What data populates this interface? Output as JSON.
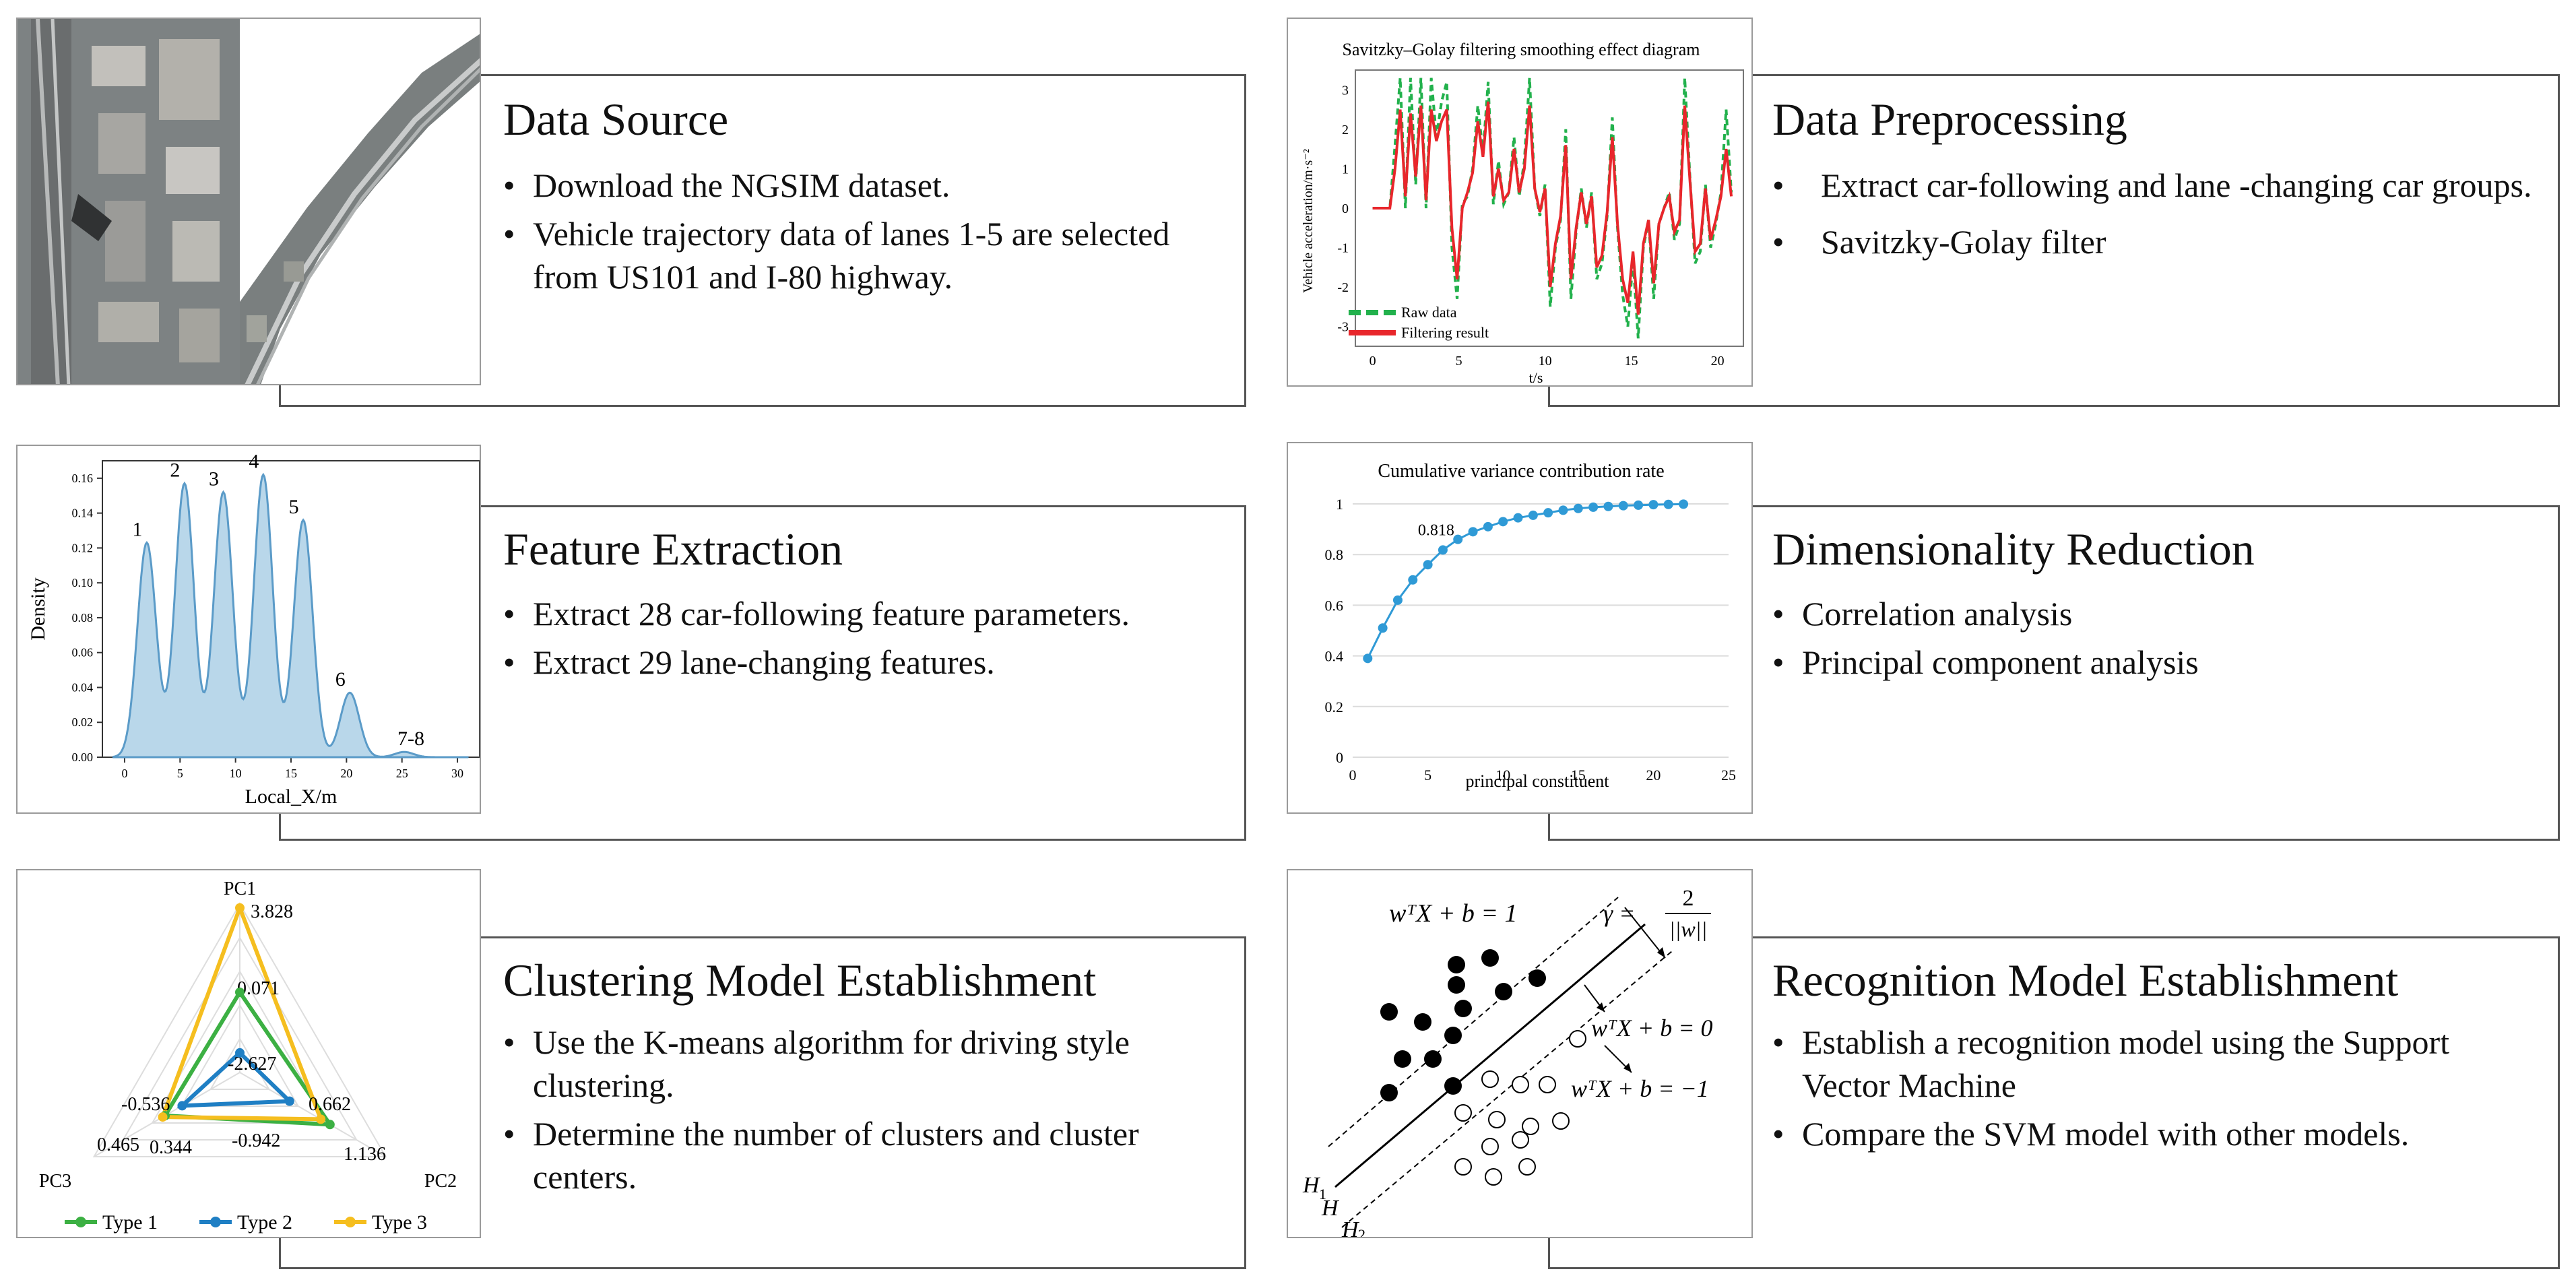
{
  "panels": {
    "data_source": {
      "title": "Data Source",
      "bullets": [
        "Download the NGSIM dataset.",
        "Vehicle trajectory data of lanes 1-5 are selected from US101 and I-80 highway."
      ]
    },
    "data_preprocessing": {
      "title": "Data Preprocessing",
      "bullets": [
        "Extract car-following and lane -changing car groups.",
        "Savitzky-Golay filter"
      ]
    },
    "feature_extraction": {
      "title": "Feature Extraction",
      "bullets": [
        "Extract 28 car-following feature parameters.",
        "Extract 29 lane-changing features."
      ]
    },
    "dimensionality_reduction": {
      "title": "Dimensionality Reduction",
      "bullets": [
        "Correlation analysis",
        "Principal component analysis"
      ]
    },
    "clustering": {
      "title": "Clustering Model Establishment",
      "bullets": [
        "Use the K-means algorithm for driving style clustering.",
        "Determine the number of clusters and cluster centers."
      ]
    },
    "recognition": {
      "title": "Recognition Model Establishment",
      "bullets": [
        "Establish a recognition model using the Support Vector Machine",
        "Compare the SVM model with other models."
      ]
    }
  },
  "colors": {
    "raw": "#22b14c",
    "filtered": "#e8262b",
    "density_fill": "#b9d7ea",
    "density_line": "#5b9bc8",
    "cumvar": "#2f9ad6",
    "type1": "#3cb043",
    "type2": "#1f7fc4",
    "type3": "#f5be1f"
  },
  "chart_data": [
    {
      "id": "sg_filter",
      "type": "line",
      "title": "Savitzky–Golay filtering smoothing effect diagram",
      "xlabel": "t/s",
      "ylabel": "Vehicle acceleration/m·s⁻²",
      "xlim": [
        -1,
        21.5
      ],
      "ylim": [
        -3.5,
        3.5
      ],
      "xticks": [
        "0",
        "5",
        "10",
        "15",
        "20"
      ],
      "yticks": [
        "3",
        "2",
        "1",
        "0",
        "-1",
        "-2",
        "-3"
      ],
      "legend": [
        "Raw data",
        "Filtering result"
      ],
      "legend_position": "bottom-left",
      "series": [
        {
          "name": "Raw data",
          "x": [
            0,
            0.5,
            1,
            1.3,
            1.6,
            1.9,
            2.2,
            2.5,
            2.8,
            3.1,
            3.4,
            3.7,
            4,
            4.3,
            4.6,
            4.9,
            5.2,
            5.5,
            5.8,
            6.1,
            6.4,
            6.7,
            7,
            7.3,
            7.6,
            7.9,
            8.2,
            8.5,
            8.8,
            9.1,
            9.4,
            9.7,
            10,
            10.3,
            10.6,
            10.9,
            11.2,
            11.5,
            11.8,
            12.1,
            12.4,
            12.7,
            13,
            13.3,
            13.6,
            13.9,
            14.2,
            14.5,
            14.8,
            15.1,
            15.4,
            15.7,
            16,
            16.3,
            16.6,
            16.9,
            17.2,
            17.5,
            17.8,
            18.1,
            18.4,
            18.7,
            19,
            19.3,
            19.6,
            19.9,
            20.2,
            20.5,
            20.8
          ],
          "y": [
            0,
            0,
            0,
            1.6,
            3.3,
            0,
            3.3,
            0.6,
            3.3,
            0,
            3.3,
            1.8,
            2.7,
            3.2,
            -1,
            -2.3,
            0.1,
            0.3,
            1,
            2.6,
            1.4,
            3.2,
            0.1,
            1.2,
            0.1,
            0.4,
            1.8,
            0.3,
            1.2,
            3.3,
            0.5,
            -0.2,
            0.6,
            -2.5,
            -1,
            -0.3,
            2,
            -2.3,
            -0.6,
            0.5,
            -0.5,
            0.4,
            -1.8,
            -1.4,
            -0.2,
            2.3,
            -0.5,
            -2.2,
            -3,
            -1.3,
            -3.3,
            -1,
            -0.3,
            -2.3,
            -0.4,
            0,
            0.4,
            -0.8,
            -0.4,
            3.3,
            0.8,
            -1.4,
            -1.1,
            0.6,
            -1,
            -0.4,
            0.4,
            2.5,
            0.4
          ]
        },
        {
          "name": "Filtering result",
          "x": [
            0,
            0.5,
            1,
            1.3,
            1.6,
            1.9,
            2.2,
            2.5,
            2.8,
            3.1,
            3.4,
            3.7,
            4,
            4.3,
            4.6,
            4.9,
            5.2,
            5.5,
            5.8,
            6.1,
            6.4,
            6.7,
            7,
            7.3,
            7.6,
            7.9,
            8.2,
            8.5,
            8.8,
            9.1,
            9.4,
            9.7,
            10,
            10.3,
            10.6,
            10.9,
            11.2,
            11.5,
            11.8,
            12.1,
            12.4,
            12.7,
            13,
            13.3,
            13.6,
            13.9,
            14.2,
            14.5,
            14.8,
            15.1,
            15.4,
            15.7,
            16,
            16.3,
            16.6,
            16.9,
            17.2,
            17.5,
            17.8,
            18.1,
            18.4,
            18.7,
            19,
            19.3,
            19.6,
            19.9,
            20.2,
            20.5,
            20.8
          ],
          "y": [
            0,
            0,
            0,
            1,
            2.5,
            0.3,
            2.4,
            0.8,
            2.6,
            0.2,
            2.5,
            1.7,
            2.2,
            2.5,
            -0.5,
            -1.8,
            0,
            0.4,
            0.9,
            2.2,
            1.3,
            2.7,
            0.3,
            1,
            0.2,
            0.4,
            1.5,
            0.4,
            1,
            2.6,
            0.5,
            -0.1,
            0.5,
            -2,
            -0.9,
            -0.2,
            1.6,
            -1.8,
            -0.5,
            0.4,
            -0.4,
            0.3,
            -1.5,
            -1.2,
            -0.1,
            1.8,
            -0.4,
            -1.8,
            -2.4,
            -1.1,
            -2.7,
            -0.9,
            -0.3,
            -1.9,
            -0.4,
            0,
            0.3,
            -0.6,
            -0.3,
            2.6,
            0.7,
            -1.1,
            -0.9,
            0.5,
            -0.8,
            -0.3,
            0.3,
            1.5,
            0.3
          ]
        }
      ]
    },
    {
      "id": "lane_density",
      "type": "area",
      "xlabel": "Local_X/m",
      "ylabel": "Density",
      "xlim": [
        -2,
        32
      ],
      "ylim": [
        0,
        0.17
      ],
      "xticks": [
        "0",
        "5",
        "10",
        "15",
        "20",
        "25",
        "30"
      ],
      "yticks": [
        "0.16",
        "0.14",
        "0.12",
        "0.10",
        "0.08",
        "0.06",
        "0.04",
        "0.02",
        "0.00"
      ],
      "peaks": [
        {
          "label": "1",
          "center": 2,
          "height": 0.123
        },
        {
          "label": "2",
          "center": 5.4,
          "height": 0.157
        },
        {
          "label": "3",
          "center": 8.9,
          "height": 0.152
        },
        {
          "label": "4",
          "center": 12.5,
          "height": 0.162
        },
        {
          "label": "5",
          "center": 16.1,
          "height": 0.136
        },
        {
          "label": "6",
          "center": 20.3,
          "height": 0.037
        },
        {
          "label": "7-8",
          "center": 25.2,
          "height": 0.003
        }
      ]
    },
    {
      "id": "cumulative_variance",
      "type": "line",
      "title": "Cumulative variance contribution rate",
      "xlabel": "principal constituent",
      "xlim": [
        0,
        25
      ],
      "ylim": [
        0,
        1
      ],
      "xticks": [
        "0",
        "5",
        "10",
        "15",
        "20",
        "25"
      ],
      "yticks": [
        "1",
        "0.8",
        "0.6",
        "0.4",
        "0.2",
        "0"
      ],
      "annotation": "0.818",
      "x": [
        1,
        2,
        3,
        4,
        5,
        6,
        7,
        8,
        9,
        10,
        11,
        12,
        13,
        14,
        15,
        16,
        17,
        18,
        19,
        20,
        21,
        22
      ],
      "y": [
        0.39,
        0.51,
        0.62,
        0.7,
        0.76,
        0.818,
        0.86,
        0.89,
        0.91,
        0.93,
        0.945,
        0.955,
        0.965,
        0.975,
        0.982,
        0.987,
        0.99,
        0.993,
        0.995,
        0.997,
        0.998,
        0.999
      ]
    },
    {
      "id": "cluster_radar",
      "type": "radar",
      "axes": [
        "PC1",
        "PC2",
        "PC3"
      ],
      "value_labels": [
        "3.828",
        "0.071",
        "-2.627",
        "-0.536",
        "0.662",
        "0.465",
        "0.344",
        "-0.942",
        "1.136"
      ],
      "legend": [
        "Type 1",
        "Type 2",
        "Type 3"
      ],
      "legend_position": "bottom",
      "series": [
        {
          "name": "Type 1",
          "values": [
            0.071,
            1.136,
            0.344
          ]
        },
        {
          "name": "Type 2",
          "values": [
            -2.627,
            -0.942,
            -0.536
          ]
        },
        {
          "name": "Type 3",
          "values": [
            3.828,
            0.662,
            0.465
          ]
        }
      ]
    }
  ],
  "svm": {
    "eq_upper": "wᵀX + b = 1",
    "eq_middle": "wᵀX + b = 0",
    "eq_lower": "wᵀX + b = −1",
    "gamma": "γ =",
    "gamma_num": "2",
    "gamma_den": "||w||",
    "h1": "H",
    "h1_sub": "1",
    "h": "H",
    "h2": "H",
    "h2_sub": "2"
  }
}
